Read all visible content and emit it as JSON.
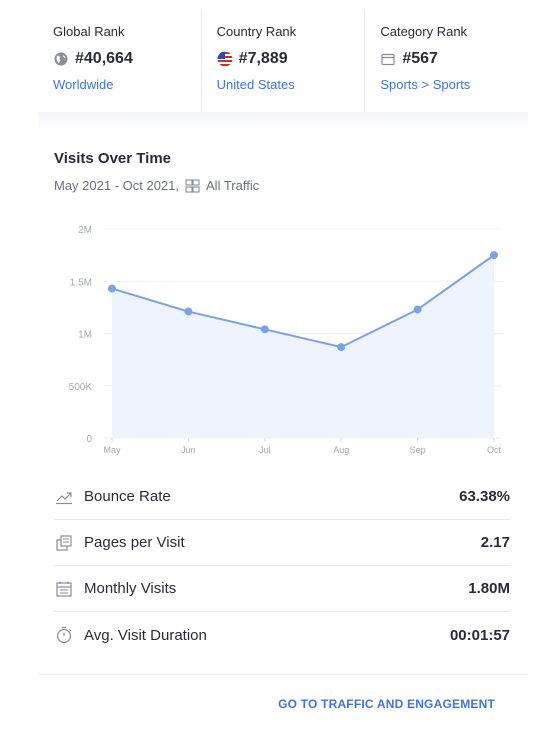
{
  "ranks": [
    {
      "label": "Global Rank",
      "value": "#40,664",
      "link": "Worldwide",
      "icon": "globe-icon"
    },
    {
      "label": "Country Rank",
      "value": "#7,889",
      "link": "United States",
      "icon": "us-flag-icon"
    },
    {
      "label": "Category Rank",
      "value": "#567",
      "link": "Sports > Sports",
      "icon": "category-icon"
    }
  ],
  "visits": {
    "title": "Visits Over Time",
    "period": "May 2021 - Oct 2021,",
    "traffic": "All Traffic"
  },
  "chart_data": {
    "type": "area",
    "categories": [
      "May",
      "Jun",
      "Jul",
      "Aug",
      "Sep",
      "Oct"
    ],
    "values": [
      1430000,
      1210000,
      1040000,
      870000,
      1230000,
      1750000
    ],
    "y_ticks": [
      "0",
      "500K",
      "1M",
      "1.5M",
      "2M"
    ],
    "ylim": [
      0,
      2000000
    ],
    "grid": true,
    "line_color": "#7aa3e5",
    "fill_color": "#eef3fd"
  },
  "metrics": [
    {
      "label": "Bounce Rate",
      "value": "63.38%",
      "icon": "bounce-rate-icon"
    },
    {
      "label": "Pages per Visit",
      "value": "2.17",
      "icon": "pages-icon"
    },
    {
      "label": "Monthly Visits",
      "value": "1.80M",
      "icon": "calendar-icon"
    },
    {
      "label": "Avg. Visit Duration",
      "value": "00:01:57",
      "icon": "timer-icon"
    }
  ],
  "cta": "GO TO TRAFFIC AND ENGAGEMENT",
  "colors": {
    "accent": "#3e74e0",
    "text": "#2a2a3c",
    "muted": "#6b6f80"
  }
}
